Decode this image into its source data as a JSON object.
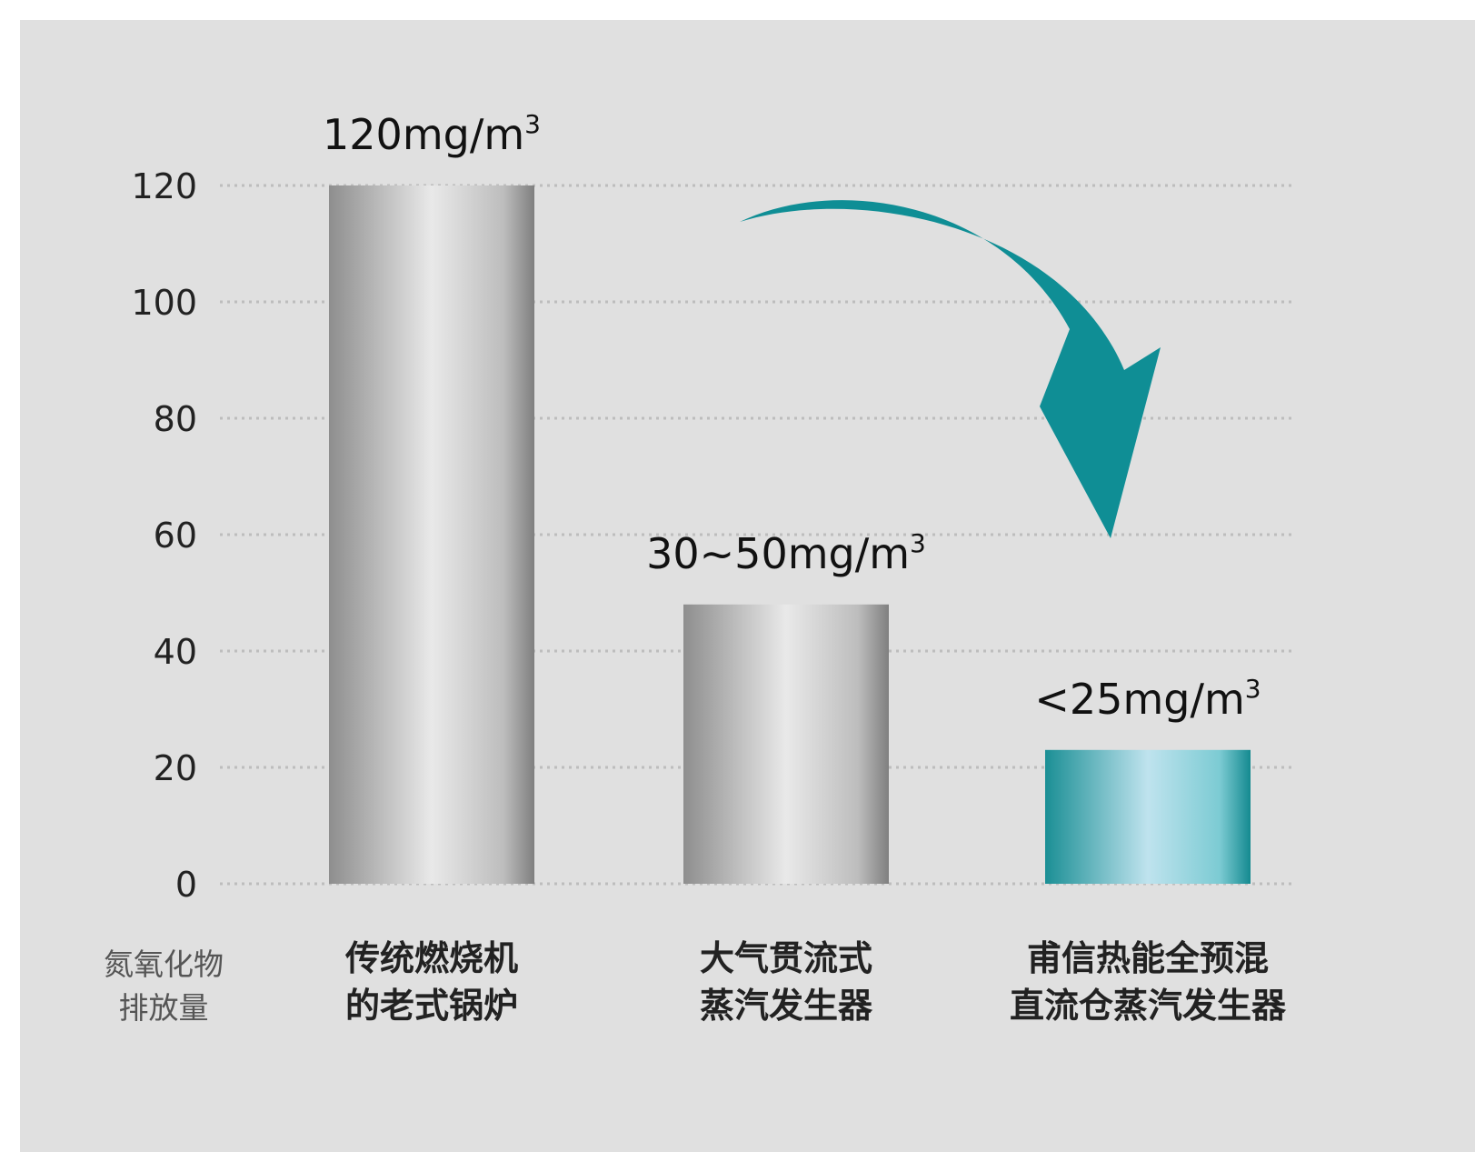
{
  "chart_data": {
    "type": "bar",
    "title": "",
    "ylabel_lines": [
      "氮氧化物",
      "排放量"
    ],
    "xlabel": "",
    "ylim": [
      0,
      120
    ],
    "yticks": [
      0,
      20,
      40,
      60,
      80,
      100,
      120
    ],
    "grid": true,
    "categories": [
      [
        "传统燃烧机",
        "的老式锅炉"
      ],
      [
        "大气贯流式",
        "蒸汽发生器"
      ],
      [
        "甫信热能全预混",
        "直流仓蒸汽发生器"
      ]
    ],
    "values": [
      120,
      48,
      23
    ],
    "value_labels": [
      {
        "main": "120mg/m",
        "sup": "3"
      },
      {
        "main": "30~50mg/m",
        "sup": "3"
      },
      {
        "main": "<25mg/m",
        "sup": "3"
      }
    ],
    "bar_styles": [
      "gray",
      "gray",
      "teal"
    ],
    "colors": {
      "panel": "#e0e0e0",
      "gray_dark": "#8e8e8e",
      "gray_light": "#e9e9e9",
      "teal_dark": "#1b8f95",
      "teal_light": "#bfe3ee",
      "arrow": "#0f8e95",
      "grid": "#bdbdbd"
    },
    "annotation": "downward-curved-arrow-icon"
  }
}
